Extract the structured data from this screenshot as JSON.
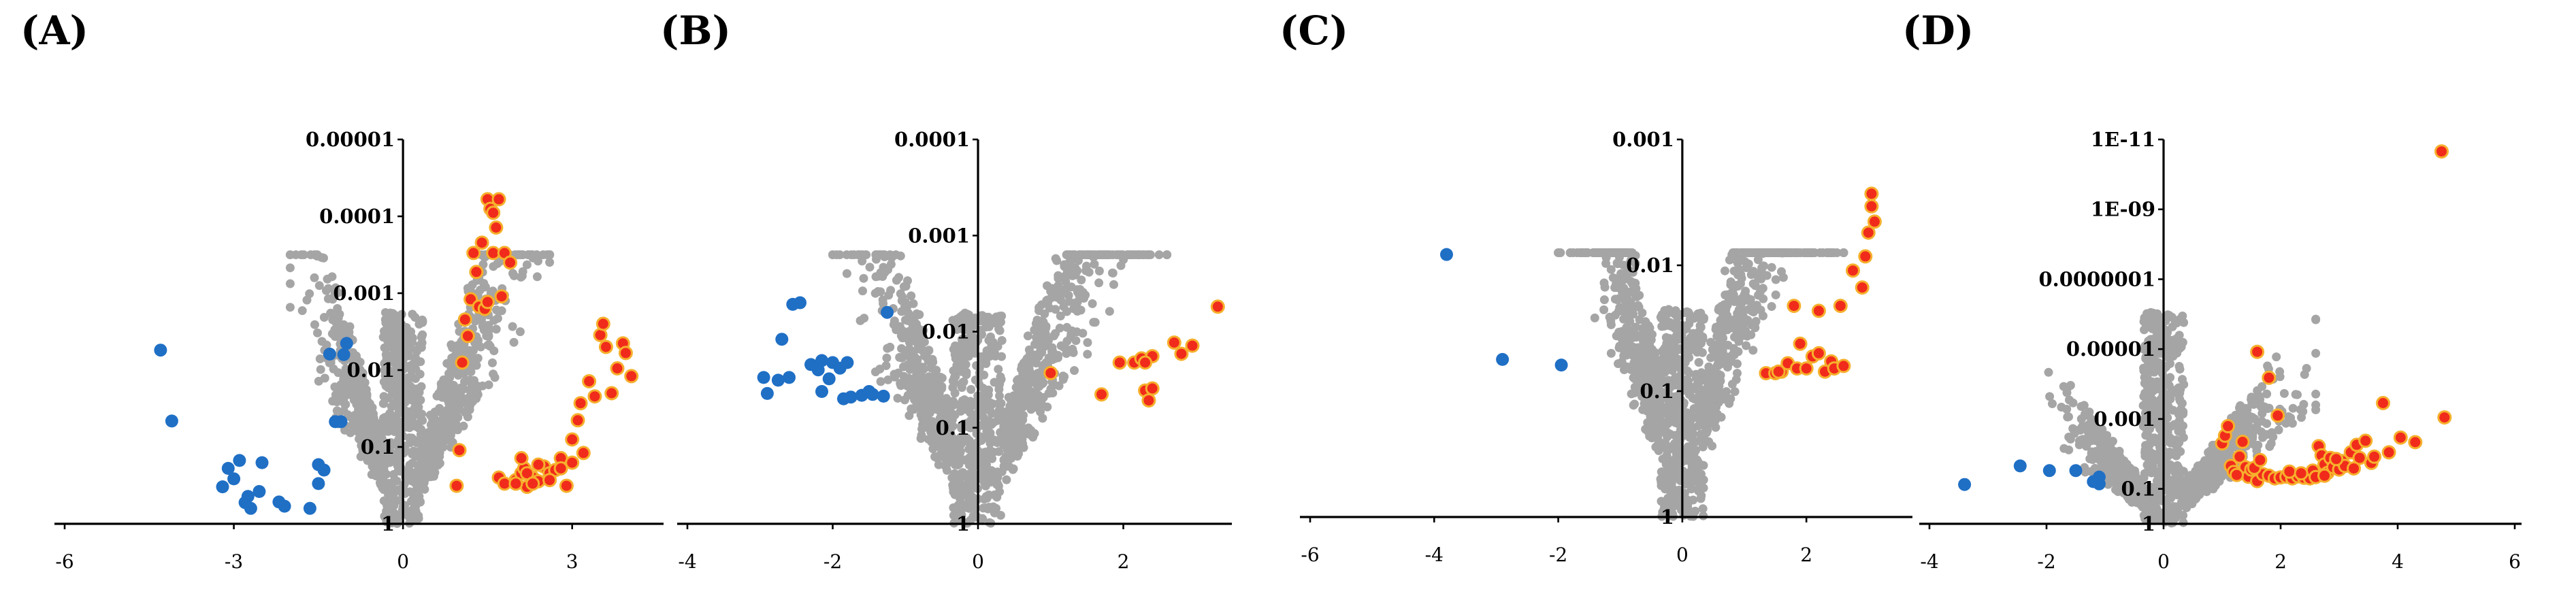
{
  "chart_data": [
    {
      "panel": "(A)",
      "type": "scatter",
      "scale": {
        "x": "linear",
        "y": "log-reversed"
      },
      "xticks": [
        -6,
        -3,
        0,
        3
      ],
      "xlim": [
        -6,
        4.5
      ],
      "ylim": [
        1,
        1e-05
      ],
      "yticks": [
        1,
        0.1,
        0.01,
        0.001,
        0.0001,
        1e-05
      ],
      "ytick_labels": [
        "1",
        "0.1",
        "0.01",
        "0.001",
        "0.0001",
        "0.00001"
      ],
      "colors": {
        "down": "#1f6fc5",
        "up": "#f12b1b",
        "up_edge": "#f6b02c",
        "ns": "#a5a5a5"
      },
      "series": [
        {
          "group": "down",
          "points": [
            [
              -4.3,
              0.0055
            ],
            [
              -4.1,
              0.046
            ],
            [
              -3.2,
              0.33
            ],
            [
              -3.1,
              0.19
            ],
            [
              -3.0,
              0.26
            ],
            [
              -2.9,
              0.15
            ],
            [
              -2.8,
              0.53
            ],
            [
              -2.75,
              0.44
            ],
            [
              -2.7,
              0.63
            ],
            [
              -2.55,
              0.38
            ],
            [
              -2.5,
              0.16
            ],
            [
              -2.2,
              0.52
            ],
            [
              -2.1,
              0.59
            ],
            [
              -1.65,
              0.63
            ],
            [
              -1.5,
              0.3
            ],
            [
              -1.4,
              0.2
            ],
            [
              -1.3,
              0.0062
            ],
            [
              -1.2,
              0.047
            ],
            [
              -1.1,
              0.047
            ],
            [
              -1.05,
              0.0063
            ],
            [
              -1.0,
              0.0045
            ],
            [
              -1.5,
              0.17
            ]
          ]
        },
        {
          "group": "up",
          "points": [
            [
              0.95,
              0.32
            ],
            [
              1.0,
              0.11
            ],
            [
              1.05,
              0.008
            ],
            [
              1.1,
              0.0022
            ],
            [
              1.15,
              0.0036
            ],
            [
              1.2,
              0.0012
            ],
            [
              1.25,
              0.0003
            ],
            [
              1.3,
              0.00053
            ],
            [
              1.35,
              0.0015
            ],
            [
              1.4,
              0.00022
            ],
            [
              1.45,
              0.0016
            ],
            [
              1.5,
              0.0013
            ],
            [
              1.5,
              6e-05
            ],
            [
              1.55,
              8e-05
            ],
            [
              1.6,
              9e-05
            ],
            [
              1.6,
              0.0003
            ],
            [
              1.65,
              0.00014
            ],
            [
              1.7,
              6e-05
            ],
            [
              1.75,
              0.0011
            ],
            [
              1.8,
              0.0003
            ],
            [
              1.9,
              0.0004
            ],
            [
              2.0,
              0.27
            ],
            [
              2.1,
              0.22
            ],
            [
              2.15,
              0.19
            ],
            [
              2.2,
              0.33
            ],
            [
              2.3,
              0.25
            ],
            [
              2.4,
              0.28
            ],
            [
              2.5,
              0.18
            ],
            [
              2.6,
              0.22
            ],
            [
              2.7,
              0.2
            ],
            [
              2.8,
              0.14
            ],
            [
              2.9,
              0.32
            ],
            [
              3.0,
              0.08
            ],
            [
              3.1,
              0.045
            ],
            [
              3.15,
              0.027
            ],
            [
              3.3,
              0.014
            ],
            [
              3.4,
              0.022
            ],
            [
              3.5,
              0.0035
            ],
            [
              3.55,
              0.0025
            ],
            [
              3.6,
              0.005
            ],
            [
              3.7,
              0.02
            ],
            [
              3.8,
              0.0095
            ],
            [
              3.9,
              0.0045
            ],
            [
              3.95,
              0.006
            ],
            [
              4.05,
              0.012
            ],
            [
              1.7,
              0.25
            ],
            [
              1.8,
              0.3
            ],
            [
              2.0,
              0.3
            ],
            [
              2.2,
              0.22
            ],
            [
              2.4,
              0.17
            ],
            [
              2.6,
              0.27
            ],
            [
              2.8,
              0.19
            ],
            [
              3.0,
              0.16
            ],
            [
              3.2,
              0.12
            ],
            [
              2.1,
              0.14
            ],
            [
              2.3,
              0.3
            ]
          ]
        }
      ]
    },
    {
      "panel": "(B)",
      "type": "scatter",
      "scale": {
        "x": "linear",
        "y": "log-reversed"
      },
      "xticks": [
        -4,
        -2,
        0,
        2
      ],
      "xlim": [
        -4,
        3.4
      ],
      "ylim": [
        1,
        0.0001
      ],
      "yticks": [
        1,
        0.1,
        0.01,
        0.001,
        0.0001
      ],
      "ytick_labels": [
        "1",
        "0.1",
        "0.01",
        "0.001",
        "0.0001"
      ],
      "colors": {
        "down": "#1f6fc5",
        "up": "#f12b1b",
        "up_edge": "#f6b02c",
        "ns": "#a5a5a5"
      },
      "series": [
        {
          "group": "down",
          "points": [
            [
              -2.95,
              0.03
            ],
            [
              -2.9,
              0.044
            ],
            [
              -2.75,
              0.032
            ],
            [
              -2.7,
              0.012
            ],
            [
              -2.55,
              0.0052
            ],
            [
              -2.45,
              0.005
            ],
            [
              -2.3,
              0.022
            ],
            [
              -2.2,
              0.025
            ],
            [
              -2.15,
              0.02
            ],
            [
              -2.05,
              0.031
            ],
            [
              -2.0,
              0.021
            ],
            [
              -1.9,
              0.024
            ],
            [
              -1.8,
              0.021
            ],
            [
              -1.75,
              0.048
            ],
            [
              -1.6,
              0.046
            ],
            [
              -1.45,
              0.045
            ],
            [
              -1.3,
              0.047
            ],
            [
              -1.25,
              0.0063
            ],
            [
              -2.6,
              0.03
            ],
            [
              -2.15,
              0.042
            ],
            [
              -1.5,
              0.042
            ],
            [
              -1.85,
              0.05
            ]
          ]
        },
        {
          "group": "up",
          "points": [
            [
              1.0,
              0.027
            ],
            [
              1.7,
              0.045
            ],
            [
              1.95,
              0.021
            ],
            [
              2.15,
              0.021
            ],
            [
              2.25,
              0.019
            ],
            [
              2.4,
              0.018
            ],
            [
              2.3,
              0.041
            ],
            [
              2.35,
              0.052
            ],
            [
              2.7,
              0.013
            ],
            [
              2.8,
              0.017
            ],
            [
              2.95,
              0.014
            ],
            [
              3.3,
              0.0055
            ],
            [
              2.3,
              0.021
            ],
            [
              2.4,
              0.039
            ]
          ]
        }
      ]
    },
    {
      "panel": "(C)",
      "type": "scatter",
      "scale": {
        "x": "linear",
        "y": "log-reversed"
      },
      "xticks": [
        -6,
        -4,
        -2,
        0,
        2
      ],
      "xlim": [
        -6,
        3.6
      ],
      "ylim": [
        1,
        0.001
      ],
      "yticks": [
        1,
        0.1,
        0.01,
        0.001
      ],
      "ytick_labels": [
        "1",
        "0.1",
        "0.01",
        "0.001"
      ],
      "colors": {
        "down": "#1f6fc5",
        "up": "#f12b1b",
        "up_edge": "#f6b02c",
        "ns": "#a5a5a5"
      },
      "series": [
        {
          "group": "down",
          "points": [
            [
              -3.8,
              0.0082
            ],
            [
              -2.9,
              0.056
            ],
            [
              -1.95,
              0.062
            ]
          ]
        },
        {
          "group": "up",
          "points": [
            [
              1.35,
              0.072
            ],
            [
              1.5,
              0.072
            ],
            [
              1.6,
              0.07
            ],
            [
              1.7,
              0.06
            ],
            [
              1.8,
              0.021
            ],
            [
              1.85,
              0.066
            ],
            [
              1.9,
              0.042
            ],
            [
              2.0,
              0.066
            ],
            [
              2.1,
              0.053
            ],
            [
              2.2,
              0.023
            ],
            [
              2.3,
              0.07
            ],
            [
              2.4,
              0.058
            ],
            [
              2.45,
              0.066
            ],
            [
              2.55,
              0.021
            ],
            [
              2.6,
              0.063
            ],
            [
              2.75,
              0.011
            ],
            [
              2.9,
              0.015
            ],
            [
              2.95,
              0.0085
            ],
            [
              3.0,
              0.0055
            ],
            [
              3.05,
              0.0034
            ],
            [
              3.05,
              0.0027
            ],
            [
              3.1,
              0.0045
            ],
            [
              1.55,
              0.07
            ],
            [
              2.2,
              0.05
            ]
          ]
        }
      ]
    },
    {
      "panel": "(D)",
      "type": "scatter",
      "scale": {
        "x": "linear",
        "y": "log-reversed"
      },
      "xticks": [
        -4,
        -2,
        0,
        2,
        4,
        6
      ],
      "xlim": [
        -4,
        6
      ],
      "ylim": [
        1,
        1e-11
      ],
      "yticks": [
        1,
        0.1,
        0.001,
        1e-05,
        1e-07,
        1e-09,
        1e-11
      ],
      "ytick_labels": [
        "1",
        "0.1",
        "0.001",
        "0.00001",
        "0.0000001",
        "1E-09",
        "1E-11"
      ],
      "colors": {
        "down": "#1f6fc5",
        "up": "#f12b1b",
        "up_edge": "#f6b02c",
        "ns": "#a5a5a5"
      },
      "series": [
        {
          "group": "down",
          "points": [
            [
              -3.4,
              0.075
            ],
            [
              -2.45,
              0.022
            ],
            [
              -1.95,
              0.03
            ],
            [
              -1.5,
              0.03
            ],
            [
              -1.1,
              0.046
            ],
            [
              -1.2,
              0.062
            ],
            [
              -1.1,
              0.072
            ]
          ]
        },
        {
          "group": "up",
          "points": [
            [
              4.75,
              2.2e-11
            ],
            [
              4.8,
              0.0009
            ],
            [
              1.6,
              1.2e-05
            ],
            [
              1.8,
              6.6e-05
            ],
            [
              1.95,
              0.0008
            ],
            [
              1.0,
              0.005
            ],
            [
              1.05,
              0.003
            ],
            [
              1.1,
              0.0016
            ],
            [
              1.15,
              0.022
            ],
            [
              1.2,
              0.033
            ],
            [
              1.3,
              0.012
            ],
            [
              1.35,
              0.0045
            ],
            [
              1.4,
              0.024
            ],
            [
              1.45,
              0.045
            ],
            [
              1.5,
              0.028
            ],
            [
              1.6,
              0.06
            ],
            [
              1.7,
              0.038
            ],
            [
              1.8,
              0.042
            ],
            [
              1.9,
              0.05
            ],
            [
              2.0,
              0.047
            ],
            [
              2.1,
              0.045
            ],
            [
              2.2,
              0.05
            ],
            [
              2.3,
              0.044
            ],
            [
              2.4,
              0.048
            ],
            [
              2.5,
              0.05
            ],
            [
              2.55,
              0.03
            ],
            [
              2.6,
              0.046
            ],
            [
              2.65,
              0.006
            ],
            [
              2.7,
              0.011
            ],
            [
              2.75,
              0.02
            ],
            [
              2.8,
              0.035
            ],
            [
              2.85,
              0.013
            ],
            [
              2.9,
              0.024
            ],
            [
              3.0,
              0.028
            ],
            [
              3.05,
              0.016
            ],
            [
              3.1,
              0.022
            ],
            [
              3.2,
              0.009
            ],
            [
              3.3,
              0.0055
            ],
            [
              3.35,
              0.013
            ],
            [
              3.45,
              0.0042
            ],
            [
              3.55,
              0.018
            ],
            [
              3.6,
              0.012
            ],
            [
              3.75,
              0.00035
            ],
            [
              3.85,
              0.009
            ],
            [
              4.05,
              0.0034
            ],
            [
              4.3,
              0.0046
            ],
            [
              1.25,
              0.04
            ],
            [
              1.55,
              0.025
            ],
            [
              2.15,
              0.032
            ],
            [
              2.35,
              0.036
            ],
            [
              2.75,
              0.042
            ],
            [
              3.25,
              0.026
            ],
            [
              1.65,
              0.015
            ],
            [
              2.95,
              0.014
            ]
          ]
        }
      ]
    }
  ]
}
